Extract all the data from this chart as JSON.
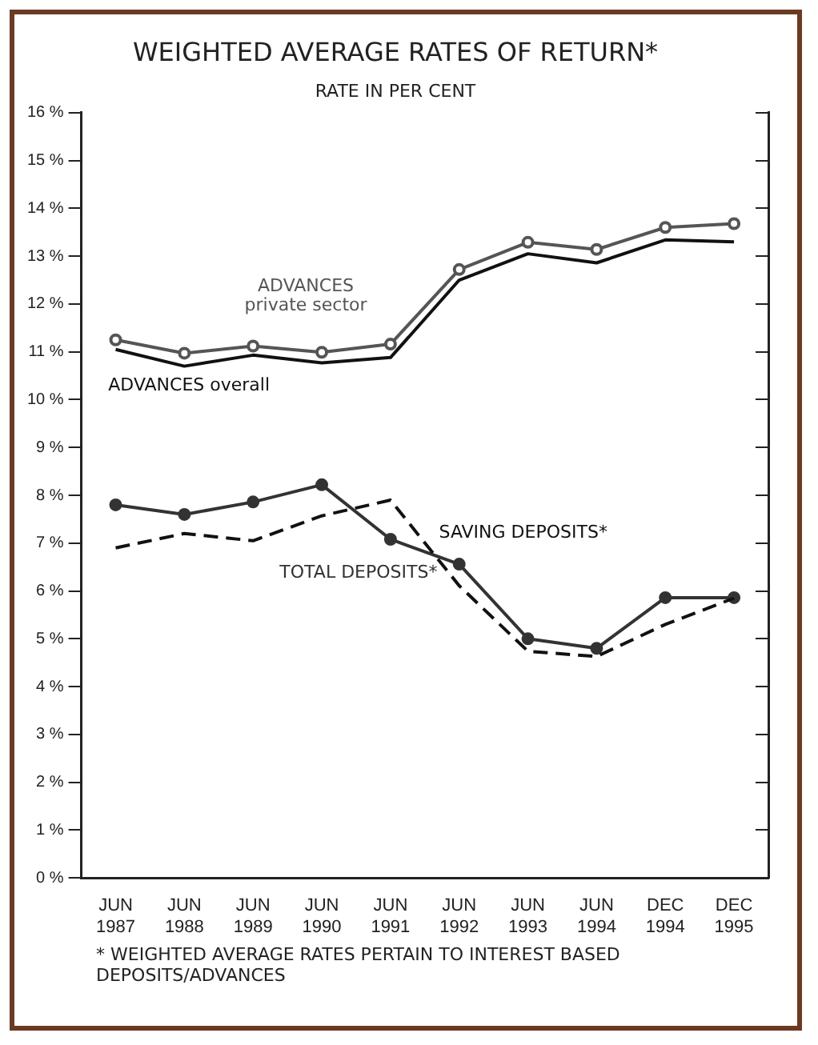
{
  "chart_data": {
    "type": "line",
    "title": "WEIGHTED AVERAGE RATES OF RETURN*",
    "subtitle": "RATE IN PER CENT",
    "categories": [
      "JUN 1987",
      "JUN 1988",
      "JUN 1989",
      "JUN 1990",
      "JUN 1991",
      "JUN 1992",
      "JUN 1993",
      "JUN 1994",
      "DEC 1994",
      "DEC 1995"
    ],
    "series": [
      {
        "name": "ADVANCES private sector",
        "color": "#555555",
        "marker": "circle",
        "line_style": "solid",
        "values": [
          11.25,
          10.97,
          11.12,
          10.99,
          11.16,
          12.72,
          13.29,
          13.14,
          13.6,
          13.68
        ]
      },
      {
        "name": "ADVANCES overall",
        "color": "#111111",
        "marker": "none",
        "line_style": "solid",
        "values": [
          11.05,
          10.7,
          10.93,
          10.77,
          10.88,
          12.5,
          13.05,
          12.86,
          13.34,
          13.3
        ]
      },
      {
        "name": "SAVING DEPOSITS*",
        "color": "#111111",
        "marker": "none",
        "line_style": "dashed",
        "values": [
          6.9,
          7.2,
          7.05,
          7.57,
          7.9,
          6.11,
          4.74,
          4.63,
          5.3,
          5.85
        ]
      },
      {
        "name": "TOTAL DEPOSITS*",
        "color": "#333333",
        "marker": "circle",
        "line_style": "solid",
        "values": [
          7.8,
          7.6,
          7.86,
          8.22,
          7.08,
          6.56,
          5.0,
          4.8,
          5.86,
          5.86
        ]
      }
    ],
    "ylim": [
      0,
      16
    ],
    "yticks": [
      {
        "value": 0,
        "label": "0 %"
      },
      {
        "value": 1,
        "label": "1 %"
      },
      {
        "value": 2,
        "label": "2 %"
      },
      {
        "value": 3,
        "label": "3 %"
      },
      {
        "value": 4,
        "label": "4 %"
      },
      {
        "value": 5,
        "label": "5 %"
      },
      {
        "value": 6,
        "label": "6 %"
      },
      {
        "value": 7,
        "label": "7 %"
      },
      {
        "value": 8,
        "label": "8 %"
      },
      {
        "value": 9,
        "label": "9 %"
      },
      {
        "value": 10,
        "label": "10 %"
      },
      {
        "value": 11,
        "label": "11 %"
      },
      {
        "value": 12,
        "label": "12 %"
      },
      {
        "value": 13,
        "label": "13 %"
      },
      {
        "value": 14,
        "label": "14 %"
      },
      {
        "value": 15,
        "label": "15 %"
      },
      {
        "value": 16,
        "label": "16 %"
      }
    ],
    "grid": false,
    "legend": false,
    "annotations": [
      "* WEIGHTED AVERAGE RATES PERTAIN TO INTEREST BASED DEPOSITS/ADVANCES"
    ]
  }
}
